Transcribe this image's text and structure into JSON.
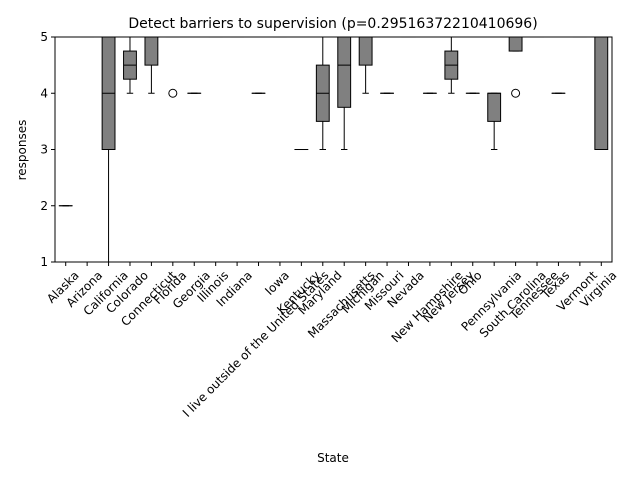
{
  "chart_data": {
    "type": "boxplot",
    "title": "Detect barriers to supervision (p=0.29516372210410696)",
    "x_label": "State",
    "y_label": "responses",
    "categories": [
      "Alaska",
      "Arizona",
      "California",
      "Colorado",
      "Connecticut",
      "Florida",
      "Georgia",
      "Illinois",
      "Indiana",
      "I live outside of the United States",
      "Iowa",
      "Kentucky",
      "Maryland",
      "Massachusetts",
      "Michigan",
      "Missouri",
      "Nevada",
      "New Hampshire",
      "New Jersey",
      "Ohio",
      "Pennsylvania",
      "South Carolina",
      "Tennessee",
      "Texas",
      "Vermont",
      "Virginia"
    ],
    "boxes": [
      {
        "whislo": 2,
        "q1": 2,
        "med": 2,
        "q3": 2,
        "whishi": 2
      },
      {
        "whislo": 5,
        "q1": 5,
        "med": 5,
        "q3": 5,
        "whishi": 5
      },
      {
        "whislo": 1,
        "q1": 3,
        "med": 4,
        "q3": 5,
        "whishi": 5
      },
      {
        "whislo": 4,
        "q1": 4.25,
        "med": 4.5,
        "q3": 4.75,
        "whishi": 5
      },
      {
        "whislo": 4,
        "q1": 4.5,
        "med": 5,
        "q3": 5,
        "whishi": 5
      },
      {
        "whislo": 5,
        "q1": 5,
        "med": 5,
        "q3": 5,
        "whishi": 5,
        "fliers": [
          4
        ]
      },
      {
        "whislo": 4,
        "q1": 4,
        "med": 4,
        "q3": 4,
        "whishi": 4
      },
      {
        "whislo": 5,
        "q1": 5,
        "med": 5,
        "q3": 5,
        "whishi": 5
      },
      {
        "whislo": 5,
        "q1": 5,
        "med": 5,
        "q3": 5,
        "whishi": 5
      },
      {
        "whislo": 4,
        "q1": 4,
        "med": 4,
        "q3": 4,
        "whishi": 4
      },
      {
        "whislo": 5,
        "q1": 5,
        "med": 5,
        "q3": 5,
        "whishi": 5
      },
      {
        "whislo": 3,
        "q1": 3,
        "med": 3,
        "q3": 3,
        "whishi": 3
      },
      {
        "whislo": 3,
        "q1": 3.5,
        "med": 4,
        "q3": 4.5,
        "whishi": 5
      },
      {
        "whislo": 3,
        "q1": 3.75,
        "med": 4.5,
        "q3": 5,
        "whishi": 5
      },
      {
        "whislo": 4,
        "q1": 4.5,
        "med": 5,
        "q3": 5,
        "whishi": 5
      },
      {
        "whislo": 4,
        "q1": 4,
        "med": 4,
        "q3": 4,
        "whishi": 4
      },
      {
        "whislo": 5,
        "q1": 5,
        "med": 5,
        "q3": 5,
        "whishi": 5
      },
      {
        "whislo": 4,
        "q1": 4,
        "med": 4,
        "q3": 4,
        "whishi": 4
      },
      {
        "whislo": 4,
        "q1": 4.25,
        "med": 4.5,
        "q3": 4.75,
        "whishi": 5
      },
      {
        "whislo": 4,
        "q1": 4,
        "med": 4,
        "q3": 4,
        "whishi": 4
      },
      {
        "whislo": 3,
        "q1": 3.5,
        "med": 4,
        "q3": 4,
        "whishi": 4
      },
      {
        "whislo": 4.75,
        "q1": 4.75,
        "med": 5,
        "q3": 5,
        "whishi": 5,
        "fliers": [
          4
        ]
      },
      {
        "whislo": 5,
        "q1": 5,
        "med": 5,
        "q3": 5,
        "whishi": 5
      },
      {
        "whislo": 4,
        "q1": 4,
        "med": 4,
        "q3": 4,
        "whishi": 4
      },
      {
        "whislo": 5,
        "q1": 5,
        "med": 5,
        "q3": 5,
        "whishi": 5
      },
      {
        "whislo": 3,
        "q1": 3,
        "med": 5,
        "q3": 5,
        "whishi": 5
      }
    ],
    "color": "#808080",
    "median_color": "#000000",
    "ylim": [
      1,
      5
    ],
    "yticks": [
      1,
      2,
      3,
      4,
      5
    ],
    "grid": false
  }
}
